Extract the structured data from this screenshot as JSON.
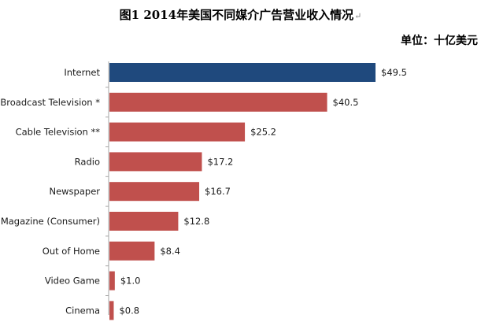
{
  "title": "图1 2014年美国不同媒介广告营业收入情况",
  "title_mark": "↵",
  "unit": "单位：十亿美元",
  "colors": {
    "highlight": "#1f497d",
    "bar": "#c0504d",
    "axis": "#a6a6a6"
  },
  "chart_data": {
    "type": "bar",
    "orientation": "horizontal",
    "categories": [
      "Internet",
      "Broadcast Television *",
      "Cable Television **",
      "Radio",
      "Newspaper",
      "Magazine (Consumer)",
      "Out of Home",
      "Video Game",
      "Cinema"
    ],
    "values": [
      49.5,
      40.5,
      25.2,
      17.2,
      16.7,
      12.8,
      8.4,
      1.0,
      0.8
    ],
    "value_labels": [
      "$49.5",
      "$40.5",
      "$25.2",
      "$17.2",
      "$16.7",
      "$12.8",
      "$8.4",
      "$1.0",
      "$0.8"
    ],
    "highlight_index": 0,
    "xlim": [
      0,
      50
    ],
    "grid": false
  }
}
